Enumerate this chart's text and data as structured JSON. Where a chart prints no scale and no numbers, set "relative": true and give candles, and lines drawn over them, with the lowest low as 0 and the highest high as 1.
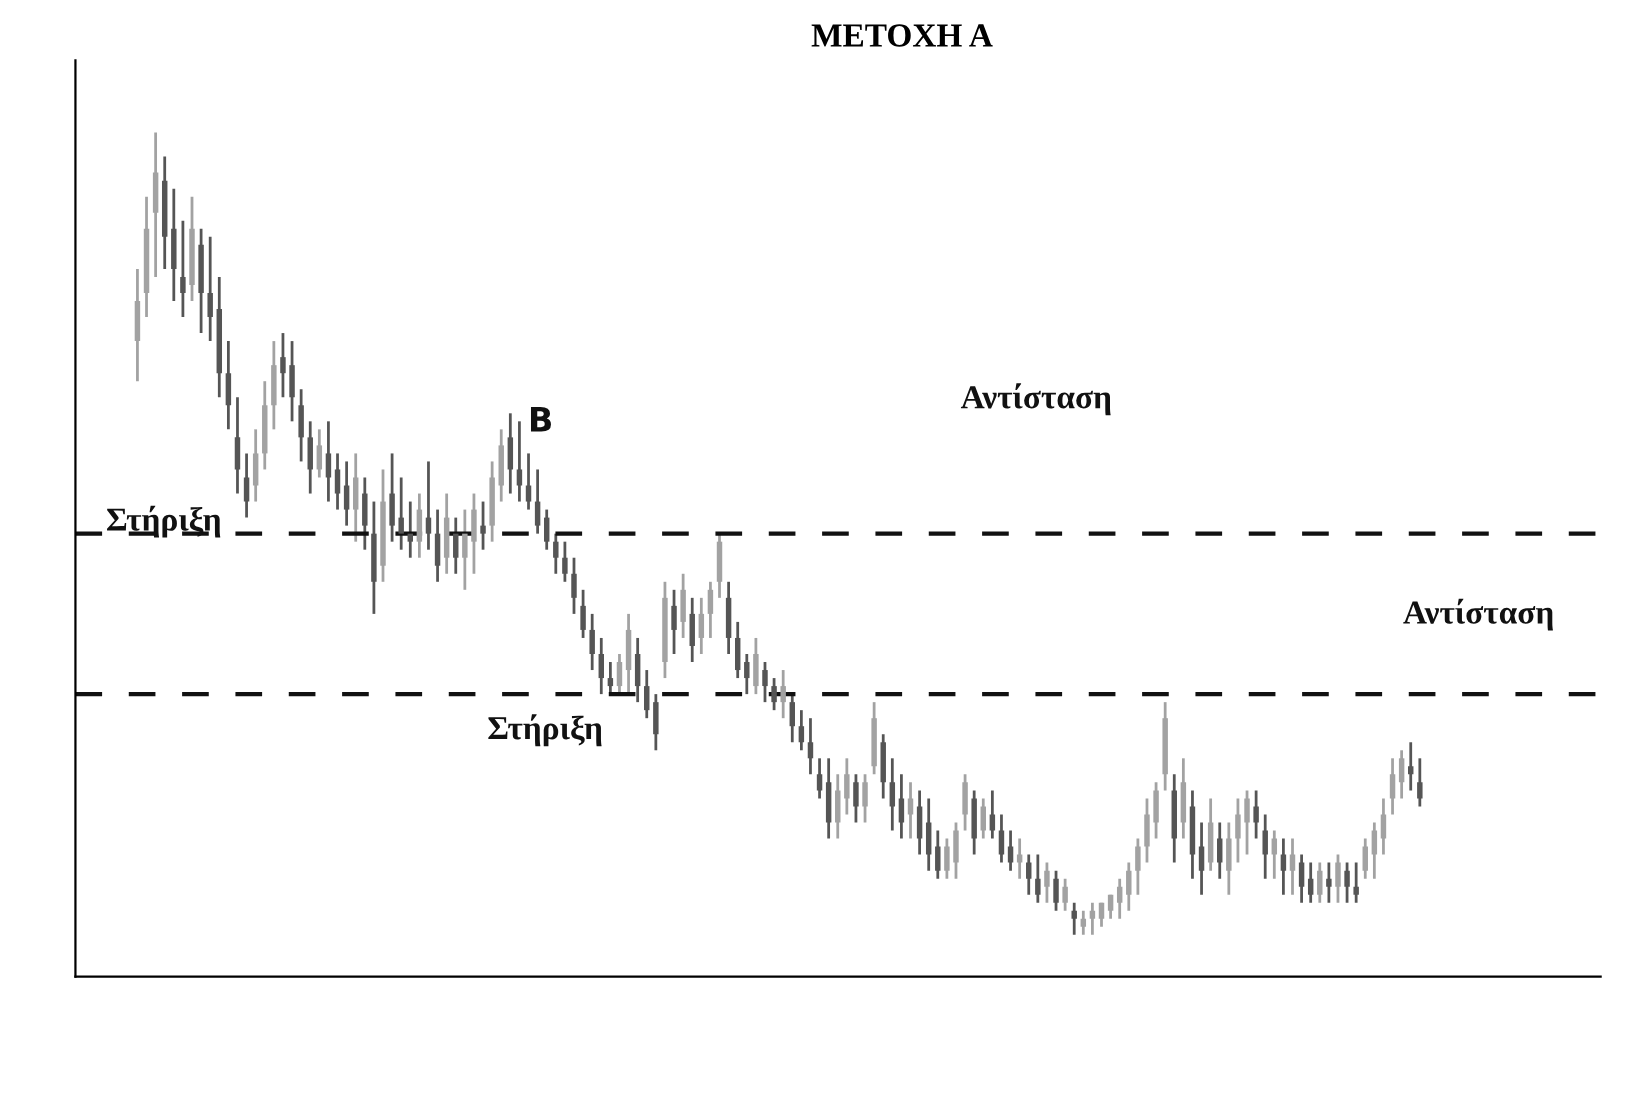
{
  "chart_data": {
    "type": "candlestick",
    "title": "ΜΕΤΟΧΗ Α",
    "relative": true,
    "colors": [
      "#a2a2a2",
      "#a2a2a2",
      "#a2a2a2",
      "#555555",
      "#555555",
      "#555555",
      "#a2a2a2",
      "#555555",
      "#555555",
      "#555555",
      "#555555",
      "#555555",
      "#555555",
      "#a2a2a2",
      "#a2a2a2",
      "#a2a2a2",
      "#555555",
      "#555555",
      "#555555",
      "#555555",
      "#a2a2a2",
      "#555555",
      "#555555",
      "#555555",
      "#a2a2a2",
      "#555555",
      "#555555",
      "#a2a2a2",
      "#555555",
      "#555555",
      "#555555",
      "#a2a2a2",
      "#555555",
      "#555555",
      "#a2a2a2",
      "#555555",
      "#a2a2a2",
      "#a2a2a2",
      "#555555",
      "#a2a2a2",
      "#a2a2a2",
      "#555555",
      "#555555",
      "#555555",
      "#555555",
      "#555555",
      "#555555",
      "#555555",
      "#555555",
      "#555555",
      "#555555",
      "#555555",
      "#555555",
      "#a2a2a2",
      "#a2a2a2",
      "#555555",
      "#555555",
      "#555555",
      "#a2a2a2",
      "#555555",
      "#a2a2a2",
      "#555555",
      "#a2a2a2",
      "#a2a2a2",
      "#a2a2a2",
      "#555555",
      "#555555",
      "#555555",
      "#a2a2a2",
      "#555555",
      "#555555",
      "#a2a2a2",
      "#555555",
      "#555555",
      "#555555",
      "#555555",
      "#555555",
      "#a2a2a2",
      "#a2a2a2",
      "#555555",
      "#a2a2a2",
      "#a2a2a2",
      "#555555",
      "#555555",
      "#555555",
      "#a2a2a2",
      "#555555",
      "#555555",
      "#555555",
      "#a2a2a2",
      "#a2a2a2",
      "#a2a2a2",
      "#555555",
      "#a2a2a2",
      "#555555",
      "#555555",
      "#555555",
      "#a2a2a2",
      "#555555",
      "#555555",
      "#a2a2a2",
      "#555555",
      "#a2a2a2",
      "#555555",
      "#a2a2a2",
      "#a2a2a2",
      "#a2a2a2",
      "#a2a2a2",
      "#a2a2a2",
      "#a2a2a2",
      "#a2a2a2",
      "#a2a2a2",
      "#a2a2a2",
      "#a2a2a2",
      "#555555",
      "#a2a2a2",
      "#555555",
      "#555555",
      "#a2a2a2",
      "#555555",
      "#a2a2a2",
      "#a2a2a2",
      "#a2a2a2",
      "#555555",
      "#555555",
      "#a2a2a2",
      "#555555",
      "#a2a2a2",
      "#555555",
      "#555555",
      "#a2a2a2",
      "#555555",
      "#a2a2a2",
      "#555555",
      "#555555",
      "#a2a2a2",
      "#a2a2a2",
      "#a2a2a2",
      "#a2a2a2",
      "#a2a2a2",
      "#555555",
      "#555555"
    ],
    "categories": [
      null,
      null,
      null,
      null,
      null,
      null,
      null,
      null,
      null,
      null,
      null,
      null,
      null,
      null,
      null,
      null,
      null,
      null,
      null,
      null,
      null,
      null,
      null,
      null,
      null,
      null,
      null,
      null,
      null,
      null,
      null,
      null,
      null,
      null,
      null,
      null,
      null,
      null,
      null,
      null,
      null,
      null,
      null,
      null,
      null,
      null,
      null,
      null,
      null,
      null,
      null,
      null,
      null,
      null,
      null,
      null,
      null,
      null,
      null,
      null,
      null,
      null,
      null,
      null,
      null,
      null,
      null,
      null,
      null,
      null,
      null,
      null,
      null,
      null,
      null,
      null,
      null,
      null,
      null,
      null,
      null,
      null,
      null,
      null,
      null,
      null,
      null,
      null,
      null,
      null,
      null,
      null,
      null,
      null,
      null,
      null,
      null,
      null,
      null,
      null,
      null,
      null,
      null,
      null,
      null,
      null,
      null,
      null,
      null,
      null,
      null,
      null,
      null,
      null,
      null,
      null,
      null,
      null,
      null,
      null,
      null,
      null,
      null,
      null,
      null,
      null,
      null,
      null,
      null,
      null,
      null,
      null,
      null,
      null,
      null,
      null,
      null,
      null,
      null,
      null,
      null,
      null
    ],
    "ohlc": [
      [
        0.74,
        0.83,
        0.69,
        0.79
      ],
      [
        0.8,
        0.92,
        0.77,
        0.88
      ],
      [
        0.9,
        1.0,
        0.82,
        0.95
      ],
      [
        0.94,
        0.97,
        0.83,
        0.87
      ],
      [
        0.88,
        0.93,
        0.79,
        0.83
      ],
      [
        0.82,
        0.89,
        0.77,
        0.8
      ],
      [
        0.81,
        0.92,
        0.79,
        0.88
      ],
      [
        0.86,
        0.88,
        0.75,
        0.8
      ],
      [
        0.8,
        0.87,
        0.74,
        0.77
      ],
      [
        0.78,
        0.82,
        0.67,
        0.7
      ],
      [
        0.7,
        0.74,
        0.63,
        0.66
      ],
      [
        0.62,
        0.67,
        0.55,
        0.58
      ],
      [
        0.57,
        0.6,
        0.52,
        0.54
      ],
      [
        0.56,
        0.63,
        0.54,
        0.6
      ],
      [
        0.6,
        0.69,
        0.58,
        0.66
      ],
      [
        0.66,
        0.74,
        0.63,
        0.71
      ],
      [
        0.72,
        0.75,
        0.67,
        0.7
      ],
      [
        0.71,
        0.74,
        0.64,
        0.67
      ],
      [
        0.66,
        0.68,
        0.59,
        0.62
      ],
      [
        0.62,
        0.64,
        0.55,
        0.58
      ],
      [
        0.58,
        0.63,
        0.57,
        0.61
      ],
      [
        0.6,
        0.64,
        0.54,
        0.57
      ],
      [
        0.58,
        0.6,
        0.53,
        0.55
      ],
      [
        0.56,
        0.59,
        0.51,
        0.53
      ],
      [
        0.53,
        0.6,
        0.49,
        0.57
      ],
      [
        0.55,
        0.57,
        0.48,
        0.51
      ],
      [
        0.5,
        0.54,
        0.4,
        0.44
      ],
      [
        0.46,
        0.58,
        0.44,
        0.54
      ],
      [
        0.55,
        0.6,
        0.49,
        0.51
      ],
      [
        0.52,
        0.57,
        0.48,
        0.5
      ],
      [
        0.5,
        0.54,
        0.47,
        0.49
      ],
      [
        0.49,
        0.55,
        0.47,
        0.53
      ],
      [
        0.52,
        0.59,
        0.48,
        0.5
      ],
      [
        0.5,
        0.53,
        0.44,
        0.46
      ],
      [
        0.47,
        0.55,
        0.45,
        0.52
      ],
      [
        0.5,
        0.52,
        0.45,
        0.47
      ],
      [
        0.47,
        0.53,
        0.43,
        0.5
      ],
      [
        0.49,
        0.55,
        0.45,
        0.53
      ],
      [
        0.51,
        0.54,
        0.48,
        0.5
      ],
      [
        0.51,
        0.59,
        0.49,
        0.57
      ],
      [
        0.56,
        0.63,
        0.54,
        0.61
      ],
      [
        0.62,
        0.65,
        0.55,
        0.58
      ],
      [
        0.58,
        0.64,
        0.54,
        0.56
      ],
      [
        0.56,
        0.6,
        0.53,
        0.54
      ],
      [
        0.54,
        0.58,
        0.5,
        0.51
      ],
      [
        0.52,
        0.53,
        0.48,
        0.49
      ],
      [
        0.49,
        0.5,
        0.45,
        0.47
      ],
      [
        0.47,
        0.49,
        0.44,
        0.45
      ],
      [
        0.45,
        0.47,
        0.4,
        0.42
      ],
      [
        0.41,
        0.43,
        0.37,
        0.38
      ],
      [
        0.38,
        0.4,
        0.33,
        0.35
      ],
      [
        0.35,
        0.37,
        0.3,
        0.32
      ],
      [
        0.32,
        0.34,
        0.3,
        0.31
      ],
      [
        0.31,
        0.35,
        0.3,
        0.34
      ],
      [
        0.33,
        0.4,
        0.3,
        0.38
      ],
      [
        0.35,
        0.37,
        0.29,
        0.31
      ],
      [
        0.31,
        0.33,
        0.27,
        0.28
      ],
      [
        0.29,
        0.3,
        0.23,
        0.25
      ],
      [
        0.34,
        0.44,
        0.32,
        0.42
      ],
      [
        0.41,
        0.43,
        0.35,
        0.38
      ],
      [
        0.39,
        0.45,
        0.37,
        0.43
      ],
      [
        0.4,
        0.42,
        0.34,
        0.36
      ],
      [
        0.37,
        0.42,
        0.35,
        0.4
      ],
      [
        0.4,
        0.44,
        0.37,
        0.43
      ],
      [
        0.44,
        0.5,
        0.42,
        0.49
      ],
      [
        0.42,
        0.44,
        0.35,
        0.37
      ],
      [
        0.37,
        0.39,
        0.32,
        0.33
      ],
      [
        0.34,
        0.35,
        0.3,
        0.32
      ],
      [
        0.31,
        0.37,
        0.3,
        0.35
      ],
      [
        0.33,
        0.34,
        0.29,
        0.31
      ],
      [
        0.31,
        0.32,
        0.28,
        0.29
      ],
      [
        0.29,
        0.33,
        0.27,
        0.31
      ],
      [
        0.29,
        0.3,
        0.24,
        0.26
      ],
      [
        0.26,
        0.28,
        0.23,
        0.24
      ],
      [
        0.24,
        0.27,
        0.2,
        0.22
      ],
      [
        0.2,
        0.22,
        0.17,
        0.18
      ],
      [
        0.19,
        0.22,
        0.12,
        0.14
      ],
      [
        0.14,
        0.2,
        0.12,
        0.18
      ],
      [
        0.17,
        0.22,
        0.15,
        0.2
      ],
      [
        0.19,
        0.2,
        0.14,
        0.16
      ],
      [
        0.16,
        0.2,
        0.14,
        0.19
      ],
      [
        0.21,
        0.29,
        0.2,
        0.27
      ],
      [
        0.24,
        0.25,
        0.17,
        0.19
      ],
      [
        0.19,
        0.22,
        0.13,
        0.16
      ],
      [
        0.17,
        0.2,
        0.12,
        0.14
      ],
      [
        0.15,
        0.19,
        0.12,
        0.17
      ],
      [
        0.16,
        0.18,
        0.1,
        0.12
      ],
      [
        0.14,
        0.17,
        0.08,
        0.1
      ],
      [
        0.11,
        0.13,
        0.07,
        0.08
      ],
      [
        0.08,
        0.12,
        0.07,
        0.11
      ],
      [
        0.09,
        0.14,
        0.07,
        0.13
      ],
      [
        0.15,
        0.2,
        0.13,
        0.19
      ],
      [
        0.17,
        0.18,
        0.1,
        0.12
      ],
      [
        0.13,
        0.17,
        0.12,
        0.16
      ],
      [
        0.15,
        0.18,
        0.12,
        0.13
      ],
      [
        0.13,
        0.15,
        0.09,
        0.1
      ],
      [
        0.11,
        0.13,
        0.08,
        0.09
      ],
      [
        0.09,
        0.12,
        0.07,
        0.1
      ],
      [
        0.09,
        0.1,
        0.05,
        0.07
      ],
      [
        0.07,
        0.1,
        0.04,
        0.05
      ],
      [
        0.06,
        0.09,
        0.04,
        0.08
      ],
      [
        0.07,
        0.08,
        0.03,
        0.04
      ],
      [
        0.04,
        0.07,
        0.03,
        0.06
      ],
      [
        0.03,
        0.04,
        0.0,
        0.02
      ],
      [
        0.01,
        0.03,
        0.0,
        0.02
      ],
      [
        0.02,
        0.04,
        0.0,
        0.03
      ],
      [
        0.02,
        0.04,
        0.01,
        0.04
      ],
      [
        0.03,
        0.05,
        0.02,
        0.05
      ],
      [
        0.04,
        0.07,
        0.02,
        0.06
      ],
      [
        0.05,
        0.09,
        0.03,
        0.08
      ],
      [
        0.08,
        0.12,
        0.05,
        0.11
      ],
      [
        0.11,
        0.17,
        0.09,
        0.15
      ],
      [
        0.14,
        0.19,
        0.12,
        0.18
      ],
      [
        0.2,
        0.29,
        0.18,
        0.27
      ],
      [
        0.18,
        0.2,
        0.09,
        0.12
      ],
      [
        0.14,
        0.22,
        0.12,
        0.19
      ],
      [
        0.16,
        0.18,
        0.07,
        0.1
      ],
      [
        0.11,
        0.14,
        0.05,
        0.08
      ],
      [
        0.09,
        0.17,
        0.08,
        0.14
      ],
      [
        0.12,
        0.14,
        0.07,
        0.09
      ],
      [
        0.08,
        0.14,
        0.05,
        0.12
      ],
      [
        0.12,
        0.17,
        0.09,
        0.15
      ],
      [
        0.14,
        0.18,
        0.1,
        0.17
      ],
      [
        0.16,
        0.18,
        0.12,
        0.14
      ],
      [
        0.13,
        0.15,
        0.07,
        0.1
      ],
      [
        0.1,
        0.13,
        0.07,
        0.12
      ],
      [
        0.1,
        0.12,
        0.05,
        0.08
      ],
      [
        0.08,
        0.12,
        0.05,
        0.1
      ],
      [
        0.09,
        0.1,
        0.04,
        0.06
      ],
      [
        0.07,
        0.09,
        0.04,
        0.05
      ],
      [
        0.05,
        0.09,
        0.04,
        0.08
      ],
      [
        0.07,
        0.09,
        0.04,
        0.06
      ],
      [
        0.06,
        0.1,
        0.04,
        0.09
      ],
      [
        0.08,
        0.09,
        0.04,
        0.06
      ],
      [
        0.06,
        0.09,
        0.04,
        0.05
      ],
      [
        0.08,
        0.12,
        0.07,
        0.11
      ],
      [
        0.1,
        0.14,
        0.07,
        0.13
      ],
      [
        0.12,
        0.17,
        0.1,
        0.15
      ],
      [
        0.17,
        0.22,
        0.15,
        0.2
      ],
      [
        0.19,
        0.23,
        0.17,
        0.22
      ],
      [
        0.21,
        0.24,
        0.18,
        0.2
      ],
      [
        0.19,
        0.22,
        0.16,
        0.17
      ]
    ],
    "ref_lines": [
      {
        "axis": "y",
        "value": 0.5,
        "label": "Στήριξη",
        "line_style": "dashed",
        "color": "#111111"
      },
      {
        "axis": "y",
        "value": 0.3,
        "label": "Στήριξη",
        "line_style": "dashed",
        "color": "#111111"
      }
    ],
    "annotations": [
      "B",
      "Αντίσταση",
      "Αντίσταση"
    ]
  }
}
